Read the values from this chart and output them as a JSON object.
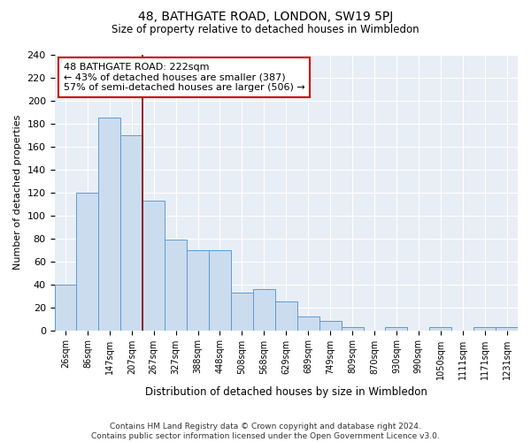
{
  "title": "48, BATHGATE ROAD, LONDON, SW19 5PJ",
  "subtitle": "Size of property relative to detached houses in Wimbledon",
  "xlabel": "Distribution of detached houses by size in Wimbledon",
  "ylabel": "Number of detached properties",
  "bar_color": "#ccdcef",
  "bar_edge_color": "#5b9bd5",
  "categories": [
    "26sqm",
    "86sqm",
    "147sqm",
    "207sqm",
    "267sqm",
    "327sqm",
    "388sqm",
    "448sqm",
    "508sqm",
    "568sqm",
    "629sqm",
    "689sqm",
    "749sqm",
    "809sqm",
    "870sqm",
    "930sqm",
    "990sqm",
    "1050sqm",
    "1111sqm",
    "1171sqm",
    "1231sqm"
  ],
  "values": [
    40,
    120,
    185,
    170,
    113,
    79,
    70,
    70,
    33,
    36,
    25,
    12,
    8,
    3,
    0,
    3,
    0,
    3,
    0,
    3,
    3
  ],
  "ylim": [
    0,
    240
  ],
  "yticks": [
    0,
    20,
    40,
    60,
    80,
    100,
    120,
    140,
    160,
    180,
    200,
    220,
    240
  ],
  "property_line_x": 3.5,
  "annotation_text_line1": "48 BATHGATE ROAD: 222sqm",
  "annotation_text_line2": "← 43% of detached houses are smaller (387)",
  "annotation_text_line3": "57% of semi-detached houses are larger (506) →",
  "bg_color": "#e8eef5",
  "grid_color": "#ffffff",
  "footer_line1": "Contains HM Land Registry data © Crown copyright and database right 2024.",
  "footer_line2": "Contains public sector information licensed under the Open Government Licence v3.0.",
  "fig_bg_color": "#ffffff"
}
